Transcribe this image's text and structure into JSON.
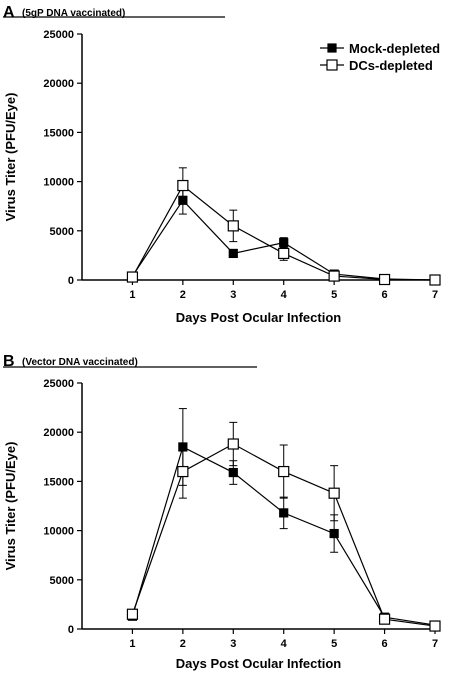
{
  "chart_data": [
    {
      "type": "line",
      "panel_letter": "A",
      "title": "(5gP DNA vaccinated)",
      "xlabel": "Days Post Ocular Infection",
      "ylabel": "Virus Titer (PFU/Eye)",
      "x": [
        1,
        2,
        3,
        4,
        5,
        6,
        7
      ],
      "xlim": [
        0,
        7
      ],
      "ylim": [
        0,
        25000
      ],
      "yticks": [
        0,
        5000,
        10000,
        15000,
        20000,
        25000
      ],
      "ytick_labels": [
        "0",
        "5000",
        "10000",
        "15000",
        "20000",
        "25000"
      ],
      "xtick_labels": [
        "1",
        "2",
        "3",
        "4",
        "5",
        "6",
        "7"
      ],
      "grid": false,
      "legend": "top-right",
      "series": [
        {
          "name": "Mock-depleted",
          "marker": "filled-square",
          "color": "#000000",
          "values": [
            400,
            8100,
            2700,
            3800,
            600,
            100,
            0
          ],
          "error": [
            0,
            1400,
            400,
            500,
            200,
            0,
            0
          ]
        },
        {
          "name": "DCs-depleted",
          "marker": "open-square",
          "color": "#000000",
          "values": [
            300,
            9600,
            5500,
            2700,
            400,
            50,
            0
          ],
          "error": [
            0,
            1800,
            1600,
            700,
            200,
            0,
            0
          ]
        }
      ]
    },
    {
      "type": "line",
      "panel_letter": "B",
      "title": "(Vector DNA vaccinated)",
      "xlabel": "Days Post Ocular Infection",
      "ylabel": "Virus Titer (PFU/Eye)",
      "x": [
        1,
        2,
        3,
        4,
        5,
        6,
        7
      ],
      "xlim": [
        0,
        7
      ],
      "ylim": [
        0,
        25000
      ],
      "yticks": [
        0,
        5000,
        10000,
        15000,
        20000,
        25000
      ],
      "ytick_labels": [
        "0",
        "5000",
        "10000",
        "15000",
        "20000",
        "25000"
      ],
      "xtick_labels": [
        "1",
        "2",
        "3",
        "4",
        "5",
        "6",
        "7"
      ],
      "grid": false,
      "legend": "none",
      "series": [
        {
          "name": "Mock-depleted",
          "marker": "filled-square",
          "color": "#000000",
          "values": [
            1300,
            18500,
            15900,
            11800,
            9700,
            1200,
            400
          ],
          "error": [
            200,
            3900,
            1200,
            1600,
            1900,
            200,
            100
          ]
        },
        {
          "name": "DCs-depleted",
          "marker": "open-square",
          "color": "#000000",
          "values": [
            1500,
            16000,
            18800,
            16000,
            13800,
            1000,
            300
          ],
          "error": [
            200,
            2700,
            2200,
            2700,
            2800,
            200,
            100
          ]
        }
      ]
    }
  ]
}
